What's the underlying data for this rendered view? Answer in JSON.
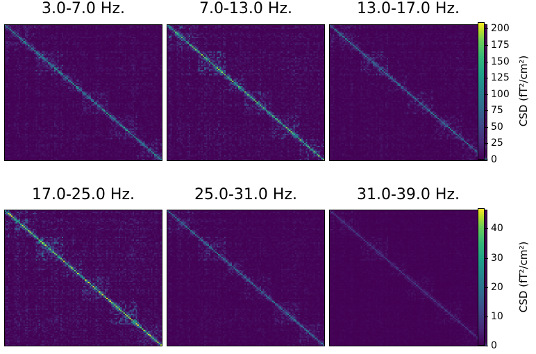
{
  "chart_data": [
    {
      "type": "heatmap",
      "colormap": "viridis",
      "colorbar": {
        "label": "CSD (fT²/cm²)",
        "range": [
          0,
          210
        ],
        "ticks": [
          "0",
          "25",
          "50",
          "75",
          "100",
          "125",
          "150",
          "175",
          "200"
        ],
        "tick_values": [
          0,
          25,
          50,
          75,
          100,
          125,
          150,
          175,
          200
        ]
      },
      "panels": [
        {
          "title": "3.0-7.0 Hz.",
          "intensity": 0.45
        },
        {
          "title": "7.0-13.0 Hz.",
          "intensity": 0.6
        },
        {
          "title": "13.0-17.0 Hz.",
          "intensity": 0.35
        }
      ]
    },
    {
      "type": "heatmap",
      "colormap": "viridis",
      "colorbar": {
        "label": "CSD (fT²/cm²)",
        "range": [
          0,
          47
        ],
        "ticks": [
          "0",
          "10",
          "20",
          "30",
          "40"
        ],
        "tick_values": [
          0,
          10,
          20,
          30,
          40
        ]
      },
      "panels": [
        {
          "title": "17.0-25.0 Hz.",
          "intensity": 0.7
        },
        {
          "title": "25.0-31.0 Hz.",
          "intensity": 0.35
        },
        {
          "title": "31.0-39.0 Hz.",
          "intensity": 0.15
        }
      ]
    }
  ]
}
